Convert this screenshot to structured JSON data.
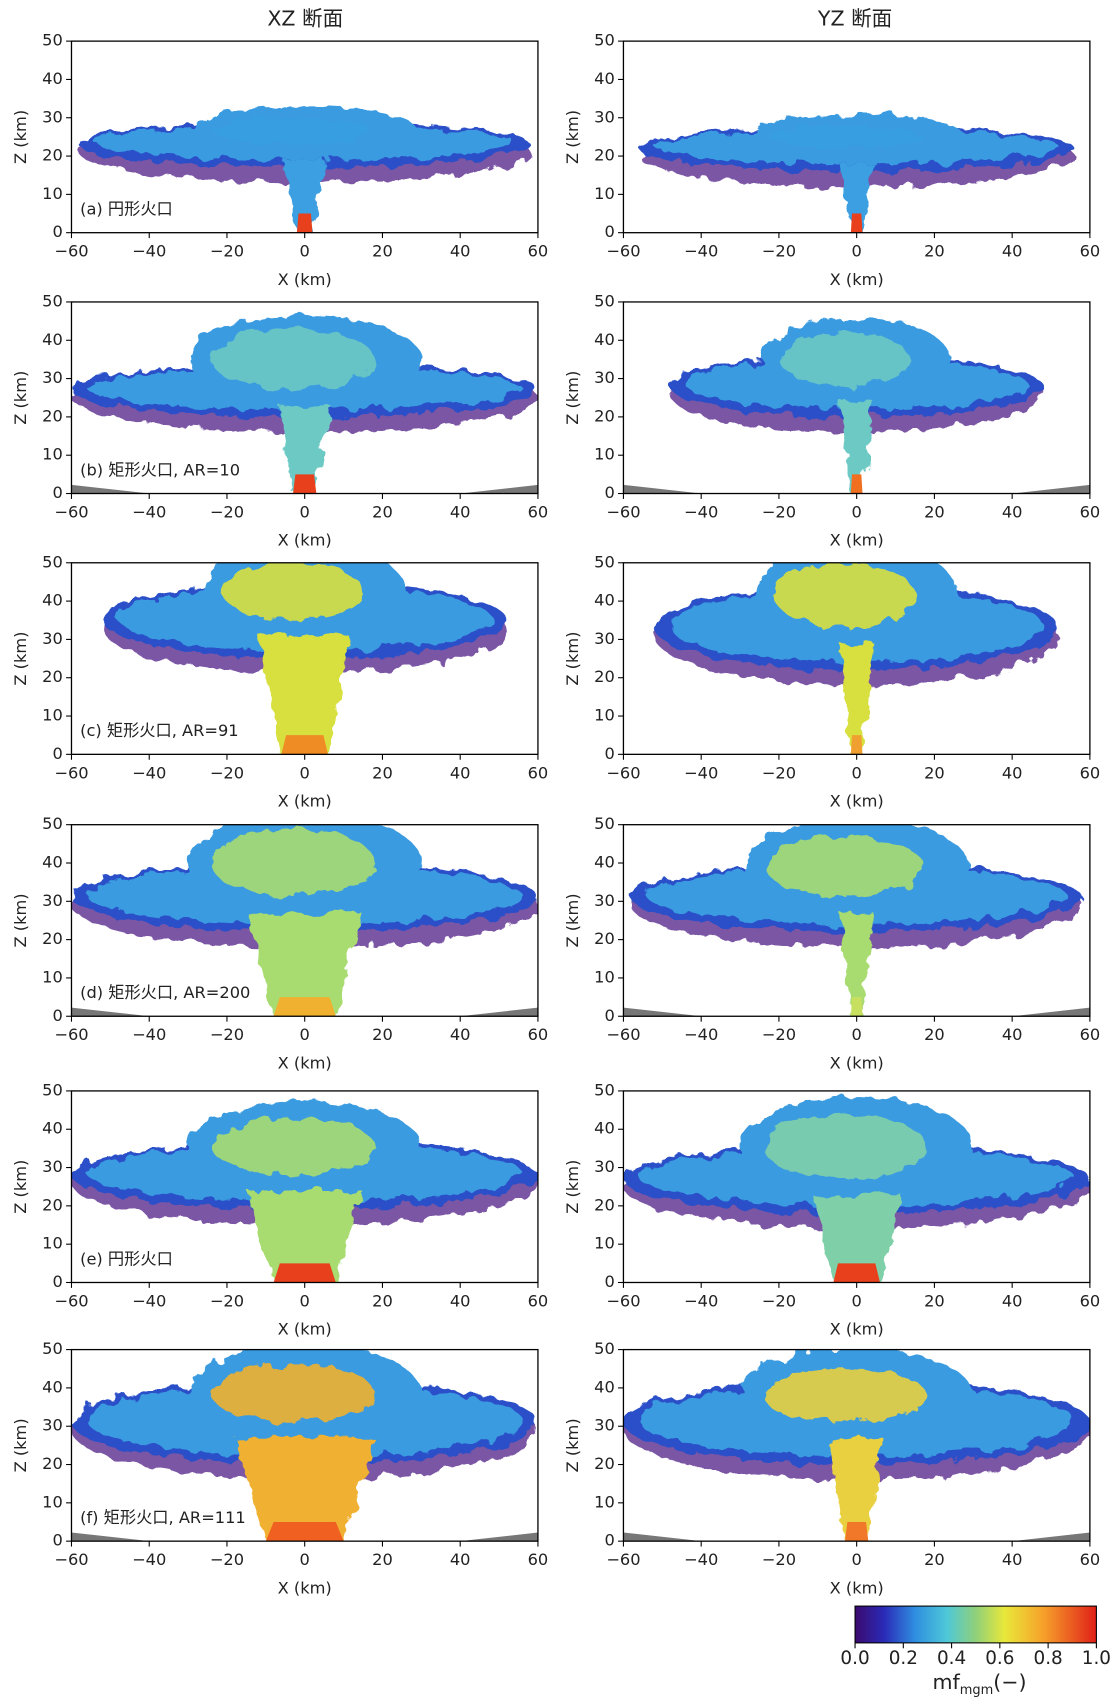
{
  "columns": [
    "XZ 断面",
    "YZ 断面"
  ],
  "chart_data": [
    {
      "type": "heatmap",
      "panel_label": "(a) 円形火口",
      "xlabel": "X (km)",
      "ylabel": "Z (km)",
      "xlim": [
        -60,
        60
      ],
      "ylim": [
        0,
        50
      ],
      "xticks": [
        {
          "value": -60,
          "label": "−60"
        },
        {
          "value": -40,
          "label": "−40"
        },
        {
          "value": -20,
          "label": "−20"
        },
        0,
        20,
        40,
        60
      ],
      "yticks": [
        0,
        10,
        20,
        30,
        40,
        50
      ]
    },
    {
      "type": "heatmap",
      "xlabel": "X (km)",
      "ylabel": "Z (km)",
      "xlim": [
        -60,
        60
      ],
      "ylim": [
        0,
        50
      ],
      "xticks": [
        {
          "value": -60,
          "label": "−60"
        },
        {
          "value": -40,
          "label": "−40"
        },
        {
          "value": -20,
          "label": "−20"
        },
        0,
        20,
        40,
        60
      ],
      "yticks": [
        0,
        10,
        20,
        30,
        40,
        50
      ]
    },
    {
      "type": "heatmap",
      "panel_label": "(b) 矩形火口, AR=10",
      "xlabel": "X (km)",
      "ylabel": "Z (km)",
      "xlim": [
        -60,
        60
      ],
      "ylim": [
        0,
        50
      ],
      "xticks": [
        {
          "value": -60,
          "label": "−60"
        },
        {
          "value": -40,
          "label": "−40"
        },
        {
          "value": -20,
          "label": "−20"
        },
        0,
        20,
        40,
        60
      ],
      "yticks": [
        0,
        10,
        20,
        30,
        40,
        50
      ]
    },
    {
      "type": "heatmap",
      "xlabel": "X (km)",
      "ylabel": "Z (km)",
      "xlim": [
        -60,
        60
      ],
      "ylim": [
        0,
        50
      ],
      "xticks": [
        {
          "value": -60,
          "label": "−60"
        },
        {
          "value": -40,
          "label": "−40"
        },
        {
          "value": -20,
          "label": "−20"
        },
        0,
        20,
        40,
        60
      ],
      "yticks": [
        0,
        10,
        20,
        30,
        40,
        50
      ]
    },
    {
      "type": "heatmap",
      "panel_label": "(c) 矩形火口, AR=91",
      "xlabel": "X (km)",
      "ylabel": "Z (km)",
      "xlim": [
        -60,
        60
      ],
      "ylim": [
        0,
        50
      ],
      "xticks": [
        {
          "value": -60,
          "label": "−60"
        },
        {
          "value": -40,
          "label": "−40"
        },
        {
          "value": -20,
          "label": "−20"
        },
        0,
        20,
        40,
        60
      ],
      "yticks": [
        0,
        10,
        20,
        30,
        40,
        50
      ]
    },
    {
      "type": "heatmap",
      "xlabel": "X (km)",
      "ylabel": "Z (km)",
      "xlim": [
        -60,
        60
      ],
      "ylim": [
        0,
        50
      ],
      "xticks": [
        {
          "value": -60,
          "label": "−60"
        },
        {
          "value": -40,
          "label": "−40"
        },
        {
          "value": -20,
          "label": "−20"
        },
        0,
        20,
        40,
        60
      ],
      "yticks": [
        0,
        10,
        20,
        30,
        40,
        50
      ]
    },
    {
      "type": "heatmap",
      "panel_label": "(d) 矩形火口, AR=200",
      "xlabel": "X (km)",
      "ylabel": "Z (km)",
      "xlim": [
        -60,
        60
      ],
      "ylim": [
        0,
        50
      ],
      "xticks": [
        {
          "value": -60,
          "label": "−60"
        },
        {
          "value": -40,
          "label": "−40"
        },
        {
          "value": -20,
          "label": "−20"
        },
        0,
        20,
        40,
        60
      ],
      "yticks": [
        0,
        10,
        20,
        30,
        40,
        50
      ]
    },
    {
      "type": "heatmap",
      "xlabel": "X (km)",
      "ylabel": "Z (km)",
      "xlim": [
        -60,
        60
      ],
      "ylim": [
        0,
        50
      ],
      "xticks": [
        {
          "value": -60,
          "label": "−60"
        },
        {
          "value": -40,
          "label": "−40"
        },
        {
          "value": -20,
          "label": "−20"
        },
        0,
        20,
        40,
        60
      ],
      "yticks": [
        0,
        10,
        20,
        30,
        40,
        50
      ]
    },
    {
      "type": "heatmap",
      "panel_label": "(e) 円形火口",
      "xlabel": "X (km)",
      "ylabel": "Z (km)",
      "xlim": [
        -60,
        60
      ],
      "ylim": [
        0,
        50
      ],
      "xticks": [
        {
          "value": -60,
          "label": "−60"
        },
        {
          "value": -40,
          "label": "−40"
        },
        {
          "value": -20,
          "label": "−20"
        },
        0,
        20,
        40,
        60
      ],
      "yticks": [
        0,
        10,
        20,
        30,
        40,
        50
      ]
    },
    {
      "type": "heatmap",
      "xlabel": "X (km)",
      "ylabel": "Z (km)",
      "xlim": [
        -60,
        60
      ],
      "ylim": [
        0,
        50
      ],
      "xticks": [
        {
          "value": -60,
          "label": "−60"
        },
        {
          "value": -40,
          "label": "−40"
        },
        {
          "value": -20,
          "label": "−20"
        },
        0,
        20,
        40,
        60
      ],
      "yticks": [
        0,
        10,
        20,
        30,
        40,
        50
      ]
    },
    {
      "type": "heatmap",
      "panel_label": "(f) 矩形火口, AR=111",
      "xlabel": "X (km)",
      "ylabel": "Z (km)",
      "xlim": [
        -60,
        60
      ],
      "ylim": [
        0,
        50
      ],
      "xticks": [
        {
          "value": -60,
          "label": "−60"
        },
        {
          "value": -40,
          "label": "−40"
        },
        {
          "value": -20,
          "label": "−20"
        },
        0,
        20,
        40,
        60
      ],
      "yticks": [
        0,
        10,
        20,
        30,
        40,
        50
      ]
    },
    {
      "type": "heatmap",
      "xlabel": "X (km)",
      "ylabel": "Z (km)",
      "xlim": [
        -60,
        60
      ],
      "ylim": [
        0,
        50
      ],
      "xticks": [
        {
          "value": -60,
          "label": "−60"
        },
        {
          "value": -40,
          "label": "−40"
        },
        {
          "value": -20,
          "label": "−20"
        },
        0,
        20,
        40,
        60
      ],
      "yticks": [
        0,
        10,
        20,
        30,
        40,
        50
      ]
    }
  ],
  "colorbar": {
    "label": "mf",
    "label_sub": "mgm",
    "label_unit": "(−)",
    "lim": [
      0,
      1
    ],
    "ticks": [
      {
        "value": 0,
        "label": "0.0"
      },
      {
        "value": 0.2,
        "label": "0.2"
      },
      {
        "value": 0.4,
        "label": "0.4"
      },
      {
        "value": 0.6,
        "label": "0.6"
      },
      {
        "value": 0.8,
        "label": "0.8"
      },
      {
        "value": 1,
        "label": "1.0"
      }
    ]
  }
}
